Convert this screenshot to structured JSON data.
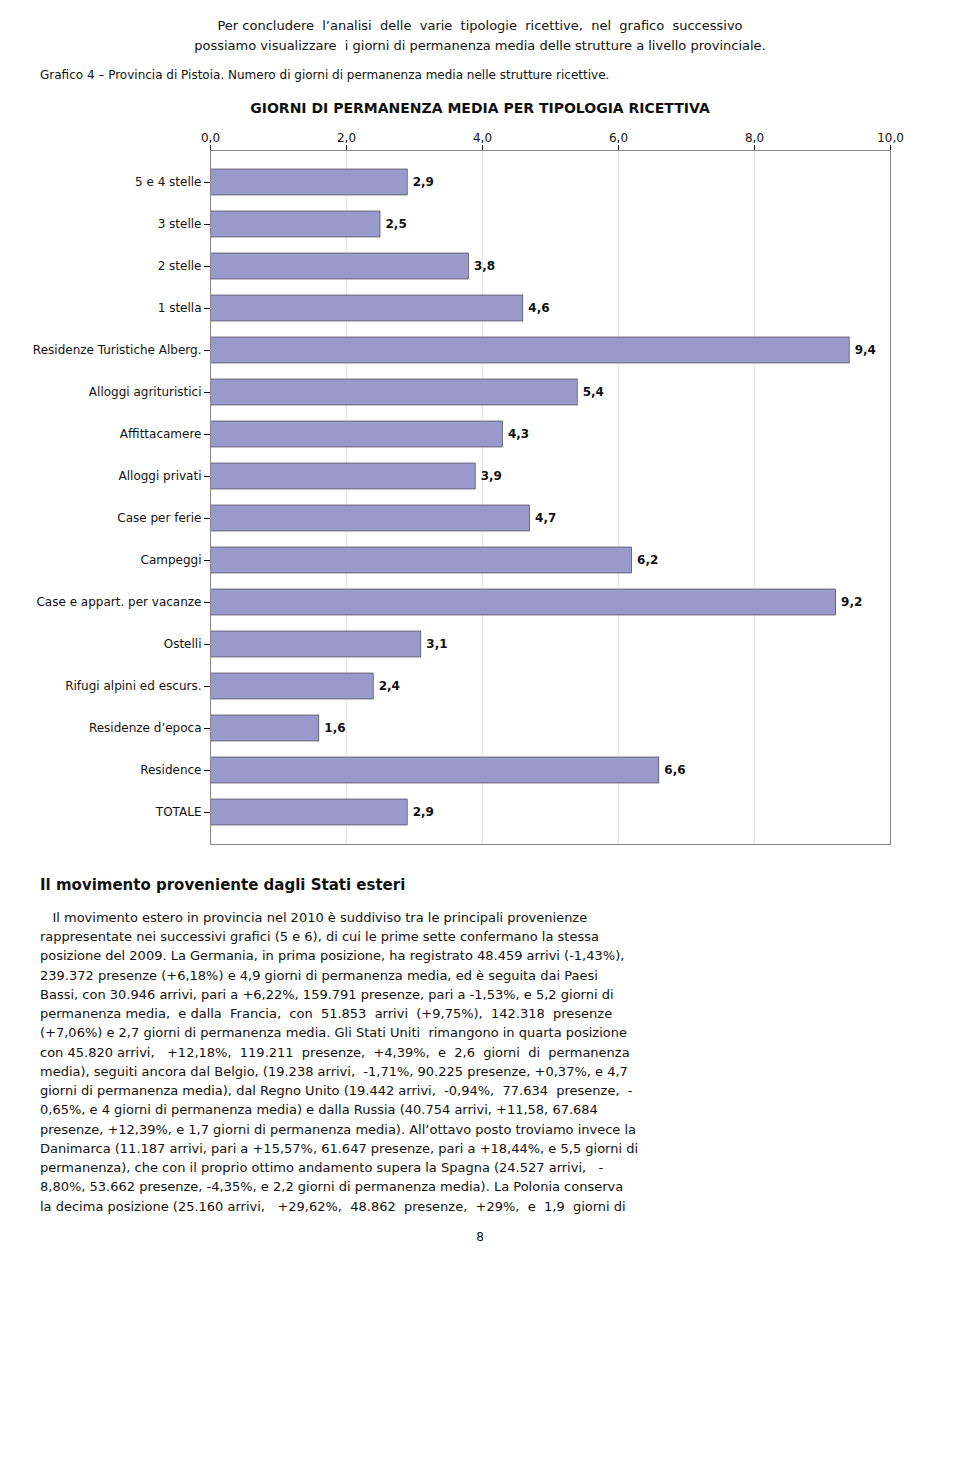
{
  "header": [
    "Per concludere  l’analisi  delle  varie  tipologie  ricettive,  nel  grafico  successivo",
    "possiamo visualizzare  i giorni di permanenza media delle strutture a livello provinciale."
  ],
  "caption": "Grafico 4 – Provincia di Pistoia. Numero di giorni di permanenza media nelle strutture ricettive.",
  "chart_data": {
    "type": "bar",
    "title": "GIORNI DI PERMANENZA MEDIA PER TIPOLOGIA RICETTIVA",
    "orientation": "horizontal",
    "categories": [
      "TOTALE",
      "Residence",
      "Residenze d’epoca",
      "Rifugi alpini ed escurs.",
      "Ostelli",
      "Case e appart. per vacanze",
      "Campeggi",
      "Case per ferie",
      "Alloggi privati",
      "Affittacamere",
      "Alloggi agrituristici",
      "Residenze Turistiche Alberg.",
      "1 stella",
      "2 stelle",
      "3 stelle",
      "5 e 4 stelle"
    ],
    "values": [
      2.9,
      6.6,
      1.6,
      2.4,
      3.1,
      9.2,
      6.2,
      4.7,
      3.9,
      4.3,
      5.4,
      9.4,
      4.6,
      3.8,
      2.5,
      2.9
    ],
    "value_labels": [
      "2,9",
      "6,6",
      "1,6",
      "2,4",
      "3,1",
      "9,2",
      "6,2",
      "4,7",
      "3,9",
      "4,3",
      "5,4",
      "9,4",
      "4,6",
      "3,8",
      "2,5",
      "2,9"
    ],
    "data_labels": true,
    "color": "#9999CC",
    "xlim": [
      0,
      10
    ],
    "xticks": [
      {
        "value": 0,
        "label": "0,0"
      },
      {
        "value": 2,
        "label": "2,0"
      },
      {
        "value": 4,
        "label": "4,0"
      },
      {
        "value": 6,
        "label": "6,0"
      },
      {
        "value": 8,
        "label": "8,0"
      },
      {
        "value": 10,
        "label": "10,0"
      }
    ],
    "grid": true
  },
  "section_title": "Il movimento proveniente dagli Stati esteri",
  "body_text": "   Il movimento estero in provincia nel 2010 è suddiviso tra le principali provenienze\nrappresentate nei successivi grafici (5 e 6), di cui le prime sette confermano la stessa\nposizione del 2009. La Germania, in prima posizione, ha registrato 48.459 arrivi (-1,43%),\n239.372 presenze (+6,18%) e 4,9 giorni di permanenza media, ed è seguita dai Paesi\nBassi, con 30.946 arrivi, pari a +6,22%, 159.791 presenze, pari a -1,53%, e 5,2 giorni di\npermanenza media,  e dalla  Francia,  con  51.853  arrivi  (+9,75%),  142.318  presenze\n(+7,06%) e 2,7 giorni di permanenza media. Gli Stati Uniti  rimangono in quarta posizione\ncon 45.820 arrivi,   +12,18%,  119.211  presenze,  +4,39%,  e  2,6  giorni  di  permanenza\nmedia), seguiti ancora dal Belgio, (19.238 arrivi,  -1,71%, 90.225 presenze, +0,37%, e 4,7\ngiorni di permanenza media), dal Regno Unito (19.442 arrivi,  -0,94%,  77.634  presenze,  -\n0,65%, e 4 giorni di permanenza media) e dalla Russia (40.754 arrivi, +11,58, 67.684\npresenze, +12,39%, e 1,7 giorni di permanenza media). All’ottavo posto troviamo invece la\nDanimarca (11.187 arrivi, pari a +15,57%, 61.647 presenze, pari a +18,44%, e 5,5 giorni di\npermanenza), che con il proprio ottimo andamento supera la Spagna (24.527 arrivi,   -\n8,80%, 53.662 presenze, -4,35%, e 2,2 giorni di permanenza media). La Polonia conserva\nla decima posizione (25.160 arrivi,   +29,62%,  48.862  presenze,  +29%,  e  1,9  giorni di",
  "page_number": "8"
}
